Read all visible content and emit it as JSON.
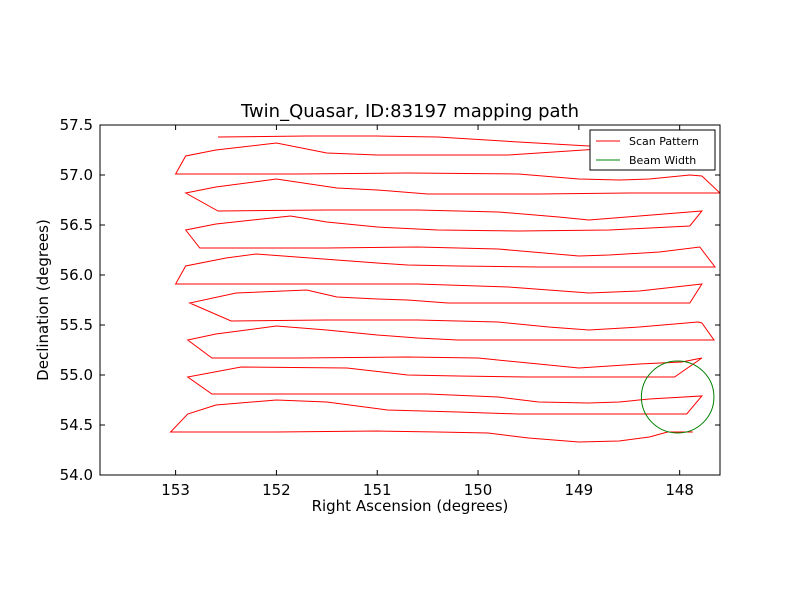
{
  "chart_data": {
    "type": "line",
    "title": "Twin_Quasar, ID:83197 mapping path",
    "xlabel": "Right Ascension (degrees)",
    "ylabel": "Declination (degrees)",
    "xlim": [
      153.75,
      147.6
    ],
    "ylim": [
      54.0,
      57.5
    ],
    "x_ticks": [
      "153",
      "152",
      "151",
      "150",
      "149",
      "148"
    ],
    "y_ticks": [
      "54.0",
      "54.5",
      "55.0",
      "55.5",
      "56.0",
      "56.5",
      "57.0",
      "57.5"
    ],
    "grid": false,
    "legend_position": "top-right",
    "colors": {
      "scan": "#ff0000",
      "beam": "#008000"
    },
    "series": [
      {
        "name": "Scan Pattern",
        "points": [
          [
            152.58,
            57.38
          ],
          [
            151.7,
            57.39
          ],
          [
            151.0,
            57.39
          ],
          [
            150.4,
            57.38
          ],
          [
            149.6,
            57.33
          ],
          [
            148.9,
            57.29
          ],
          [
            148.5,
            57.32
          ],
          [
            147.98,
            57.29
          ],
          [
            148.8,
            57.26
          ],
          [
            149.7,
            57.2
          ],
          [
            150.5,
            57.2
          ],
          [
            151.0,
            57.2
          ],
          [
            151.5,
            57.22
          ],
          [
            152.0,
            57.32
          ],
          [
            152.6,
            57.25
          ],
          [
            152.9,
            57.19
          ],
          [
            153.0,
            57.01
          ],
          [
            151.8,
            57.01
          ],
          [
            150.7,
            57.02
          ],
          [
            149.6,
            57.01
          ],
          [
            149.0,
            56.96
          ],
          [
            148.6,
            56.95
          ],
          [
            148.3,
            56.96
          ],
          [
            147.9,
            57.0
          ],
          [
            147.78,
            56.99
          ],
          [
            147.6,
            56.82
          ],
          [
            148.5,
            56.82
          ],
          [
            149.4,
            56.81
          ],
          [
            150.5,
            56.81
          ],
          [
            151.0,
            56.85
          ],
          [
            151.4,
            56.87
          ],
          [
            152.0,
            56.96
          ],
          [
            152.6,
            56.88
          ],
          [
            152.9,
            56.82
          ],
          [
            152.58,
            56.64
          ],
          [
            151.5,
            56.65
          ],
          [
            150.6,
            56.65
          ],
          [
            149.8,
            56.63
          ],
          [
            149.2,
            56.58
          ],
          [
            148.9,
            56.55
          ],
          [
            148.4,
            56.59
          ],
          [
            147.78,
            56.64
          ],
          [
            147.9,
            56.49
          ],
          [
            148.7,
            56.45
          ],
          [
            149.6,
            56.44
          ],
          [
            150.4,
            56.45
          ],
          [
            151.0,
            56.48
          ],
          [
            151.5,
            56.53
          ],
          [
            151.86,
            56.59
          ],
          [
            152.6,
            56.51
          ],
          [
            152.9,
            56.45
          ],
          [
            152.76,
            56.27
          ],
          [
            151.5,
            56.27
          ],
          [
            150.6,
            56.28
          ],
          [
            149.8,
            56.26
          ],
          [
            149.0,
            56.19
          ],
          [
            148.7,
            56.2
          ],
          [
            148.2,
            56.23
          ],
          [
            147.8,
            56.28
          ],
          [
            147.65,
            56.08
          ],
          [
            148.6,
            56.08
          ],
          [
            149.4,
            56.08
          ],
          [
            150.2,
            56.09
          ],
          [
            150.7,
            56.1
          ],
          [
            151.0,
            56.12
          ],
          [
            151.4,
            56.15
          ],
          [
            152.2,
            56.21
          ],
          [
            152.5,
            56.17
          ],
          [
            152.9,
            56.09
          ],
          [
            153.0,
            55.91
          ],
          [
            151.7,
            55.91
          ],
          [
            150.6,
            55.91
          ],
          [
            149.7,
            55.88
          ],
          [
            149.3,
            55.85
          ],
          [
            148.9,
            55.82
          ],
          [
            148.4,
            55.84
          ],
          [
            147.78,
            55.91
          ],
          [
            147.9,
            55.72
          ],
          [
            148.7,
            55.72
          ],
          [
            149.5,
            55.72
          ],
          [
            150.3,
            55.72
          ],
          [
            150.7,
            55.75
          ],
          [
            151.0,
            55.76
          ],
          [
            151.4,
            55.78
          ],
          [
            151.7,
            55.85
          ],
          [
            152.4,
            55.82
          ],
          [
            152.86,
            55.72
          ],
          [
            152.45,
            55.54
          ],
          [
            151.5,
            55.55
          ],
          [
            150.6,
            55.55
          ],
          [
            149.8,
            55.53
          ],
          [
            149.3,
            55.48
          ],
          [
            148.9,
            55.45
          ],
          [
            148.4,
            55.48
          ],
          [
            147.82,
            55.53
          ],
          [
            147.78,
            55.52
          ],
          [
            147.66,
            55.35
          ],
          [
            148.4,
            55.35
          ],
          [
            149.3,
            55.35
          ],
          [
            150.2,
            55.35
          ],
          [
            150.6,
            55.37
          ],
          [
            151.0,
            55.4
          ],
          [
            151.5,
            55.45
          ],
          [
            152.0,
            55.49
          ],
          [
            152.6,
            55.41
          ],
          [
            152.88,
            55.35
          ],
          [
            152.64,
            55.17
          ],
          [
            151.8,
            55.17
          ],
          [
            150.7,
            55.18
          ],
          [
            150.0,
            55.17
          ],
          [
            149.5,
            55.12
          ],
          [
            149.0,
            55.07
          ],
          [
            148.4,
            55.11
          ],
          [
            147.98,
            55.13
          ],
          [
            147.78,
            55.17
          ],
          [
            148.05,
            54.98
          ],
          [
            148.7,
            54.98
          ],
          [
            149.5,
            54.98
          ],
          [
            150.2,
            54.99
          ],
          [
            150.7,
            55.0
          ],
          [
            151.3,
            55.07
          ],
          [
            152.35,
            55.08
          ],
          [
            152.88,
            54.98
          ],
          [
            152.64,
            54.81
          ],
          [
            151.7,
            54.81
          ],
          [
            150.5,
            54.81
          ],
          [
            149.8,
            54.78
          ],
          [
            149.4,
            54.73
          ],
          [
            148.9,
            54.72
          ],
          [
            148.6,
            54.73
          ],
          [
            148.3,
            54.76
          ],
          [
            147.78,
            54.79
          ],
          [
            147.93,
            54.61
          ],
          [
            148.4,
            54.61
          ],
          [
            149.1,
            54.61
          ],
          [
            149.6,
            54.61
          ],
          [
            150.2,
            54.63
          ],
          [
            150.9,
            54.65
          ],
          [
            151.5,
            54.73
          ],
          [
            152.0,
            54.75
          ],
          [
            152.6,
            54.7
          ],
          [
            152.88,
            54.61
          ],
          [
            153.05,
            54.43
          ],
          [
            152.0,
            54.43
          ],
          [
            151.0,
            54.44
          ],
          [
            150.4,
            54.43
          ],
          [
            149.9,
            54.42
          ],
          [
            149.5,
            54.37
          ],
          [
            149.0,
            54.33
          ],
          [
            148.6,
            54.34
          ],
          [
            148.3,
            54.38
          ],
          [
            148.12,
            54.43
          ],
          [
            147.87,
            54.43
          ]
        ]
      },
      {
        "name": "Beam Width",
        "circle": {
          "center": [
            148.02,
            54.78
          ],
          "radius": 0.36
        }
      }
    ]
  }
}
